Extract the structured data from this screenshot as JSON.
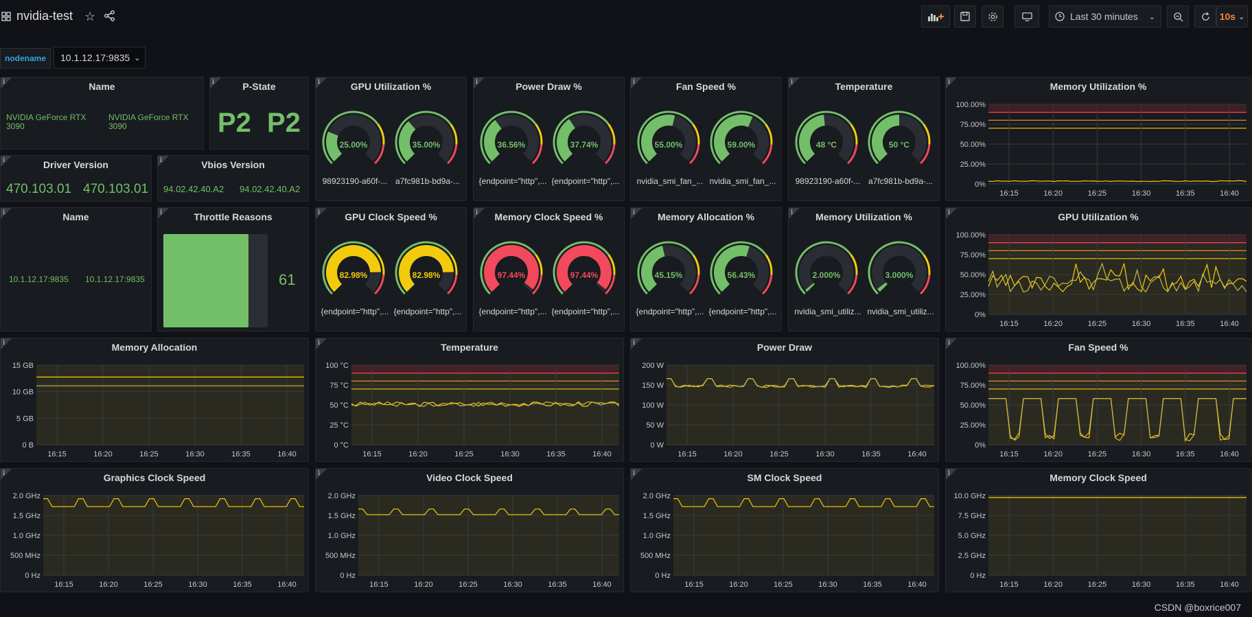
{
  "header": {
    "title": "nvidia-test",
    "time_range": "Last 30 minutes",
    "refresh_interval": "10s"
  },
  "variables": {
    "label": "nodename",
    "value": "10.1.12.17:9835"
  },
  "colors": {
    "green": "#73bf69",
    "yellow": "#f2cc0c",
    "orange": "#ff9830",
    "red": "#f2495c",
    "series": "#f2cc0c"
  },
  "row1": {
    "name": {
      "title": "Name",
      "values": [
        "NVIDIA GeForce RTX 3090",
        "NVIDIA GeForce RTX 3090"
      ]
    },
    "pstate": {
      "title": "P-State",
      "values": [
        "P2",
        "P2"
      ]
    },
    "driver": {
      "title": "Driver Version",
      "values": [
        "470.103.01",
        "470.103.01"
      ]
    },
    "vbios": {
      "title": "Vbios Version",
      "values": [
        "94.02.42.40.A2",
        "94.02.42.40.A2"
      ]
    }
  },
  "gauges": [
    {
      "title": "GPU Utilization %",
      "items": [
        {
          "value": "25.00%",
          "fraction": 0.25,
          "color": "#73bf69",
          "label": "98923190-a60f-..."
        },
        {
          "value": "35.00%",
          "fraction": 0.35,
          "color": "#73bf69",
          "label": "a7fc981b-bd9a-..."
        }
      ]
    },
    {
      "title": "Power Draw %",
      "items": [
        {
          "value": "36.56%",
          "fraction": 0.3656,
          "color": "#73bf69",
          "label": "{endpoint=\"http\",..."
        },
        {
          "value": "37.74%",
          "fraction": 0.3774,
          "color": "#73bf69",
          "label": "{endpoint=\"http\",..."
        }
      ]
    },
    {
      "title": "Fan Speed %",
      "items": [
        {
          "value": "55.00%",
          "fraction": 0.55,
          "color": "#73bf69",
          "label": "nvidia_smi_fan_..."
        },
        {
          "value": "59.00%",
          "fraction": 0.59,
          "color": "#73bf69",
          "label": "nvidia_smi_fan_..."
        }
      ]
    },
    {
      "title": "Temperature",
      "items": [
        {
          "value": "48 °C",
          "fraction": 0.48,
          "color": "#73bf69",
          "label": "98923190-a60f-..."
        },
        {
          "value": "50 °C",
          "fraction": 0.5,
          "color": "#73bf69",
          "label": "a7fc981b-bd9a-..."
        }
      ]
    },
    {
      "title": "GPU Clock Speed %",
      "items": [
        {
          "value": "82.98%",
          "fraction": 0.8298,
          "color": "#f2cc0c",
          "label": "{endpoint=\"http\",..."
        },
        {
          "value": "82.98%",
          "fraction": 0.8298,
          "color": "#f2cc0c",
          "label": "{endpoint=\"http\",..."
        }
      ]
    },
    {
      "title": "Memory Clock Speed %",
      "items": [
        {
          "value": "97.44%",
          "fraction": 0.9744,
          "color": "#f2495c",
          "label": "{endpoint=\"http\",..."
        },
        {
          "value": "97.44%",
          "fraction": 0.9744,
          "color": "#f2495c",
          "label": "{endpoint=\"http\",..."
        }
      ]
    },
    {
      "title": "Memory Allocation %",
      "items": [
        {
          "value": "45.15%",
          "fraction": 0.4515,
          "color": "#73bf69",
          "label": "{endpoint=\"http\",..."
        },
        {
          "value": "56.43%",
          "fraction": 0.5643,
          "color": "#73bf69",
          "label": "{endpoint=\"http\",..."
        }
      ]
    },
    {
      "title": "Memory Utilization %",
      "items": [
        {
          "value": "2.000%",
          "fraction": 0.02,
          "color": "#73bf69",
          "label": "nvidia_smi_utiliz..."
        },
        {
          "value": "3.000%",
          "fraction": 0.03,
          "color": "#73bf69",
          "label": "nvidia_smi_utiliz..."
        }
      ]
    }
  ],
  "row2": {
    "name": {
      "title": "Name",
      "values": [
        "10.1.12.17:9835",
        "10.1.12.17:9835"
      ]
    },
    "throttle": {
      "title": "Throttle Reasons",
      "value": "61"
    }
  },
  "timeseries": [
    {
      "title": "Memory Utilization %",
      "yticks": [
        "100.00%",
        "75.00%",
        "50.00%",
        "25.00%",
        "0%"
      ],
      "xticks": [
        "16:15",
        "16:20",
        "16:25",
        "16:30",
        "16:35",
        "16:40"
      ],
      "thresholds": true,
      "fill": false
    },
    {
      "title": "GPU Utilization %",
      "yticks": [
        "100.00%",
        "75.00%",
        "50.00%",
        "25.00%",
        "0%"
      ],
      "xticks": [
        "16:15",
        "16:20",
        "16:25",
        "16:30",
        "16:35",
        "16:40"
      ],
      "thresholds": true,
      "fill": true
    },
    {
      "title": "Memory Allocation",
      "yticks": [
        "15 GB",
        "10 GB",
        "5 GB",
        "0 B"
      ],
      "xticks": [
        "16:15",
        "16:20",
        "16:25",
        "16:30",
        "16:35",
        "16:40"
      ],
      "thresholds": false,
      "fill": true
    },
    {
      "title": "Temperature",
      "yticks": [
        "100 °C",
        "75 °C",
        "50 °C",
        "25 °C",
        "0 °C"
      ],
      "xticks": [
        "16:15",
        "16:20",
        "16:25",
        "16:30",
        "16:35",
        "16:40"
      ],
      "thresholds": true,
      "fill": true
    },
    {
      "title": "Power Draw",
      "yticks": [
        "200 W",
        "150 W",
        "100 W",
        "50 W",
        "0 W"
      ],
      "xticks": [
        "16:15",
        "16:20",
        "16:25",
        "16:30",
        "16:35",
        "16:40"
      ],
      "thresholds": false,
      "fill": true
    },
    {
      "title": "Fan Speed %",
      "yticks": [
        "100.00%",
        "75.00%",
        "50.00%",
        "25.00%",
        "0%"
      ],
      "xticks": [
        "16:15",
        "16:20",
        "16:25",
        "16:30",
        "16:35",
        "16:40"
      ],
      "thresholds": true,
      "fill": true
    },
    {
      "title": "Graphics Clock Speed",
      "yticks": [
        "2.0 GHz",
        "1.5 GHz",
        "1.0 GHz",
        "500 MHz",
        "0 Hz"
      ],
      "xticks": [
        "16:15",
        "16:20",
        "16:25",
        "16:30",
        "16:35",
        "16:40"
      ],
      "thresholds": false,
      "fill": true
    },
    {
      "title": "Video Clock Speed",
      "yticks": [
        "2.0 GHz",
        "1.5 GHz",
        "1.0 GHz",
        "500 MHz",
        "0 Hz"
      ],
      "xticks": [
        "16:15",
        "16:20",
        "16:25",
        "16:30",
        "16:35",
        "16:40"
      ],
      "thresholds": false,
      "fill": true
    },
    {
      "title": "SM Clock Speed",
      "yticks": [
        "2.0 GHz",
        "1.5 GHz",
        "1.0 GHz",
        "500 MHz",
        "0 Hz"
      ],
      "xticks": [
        "16:15",
        "16:20",
        "16:25",
        "16:30",
        "16:35",
        "16:40"
      ],
      "thresholds": false,
      "fill": true
    },
    {
      "title": "Memory Clock Speed",
      "yticks": [
        "10.0 GHz",
        "7.5 GHz",
        "5.0 GHz",
        "2.5 GHz",
        "0 Hz"
      ],
      "xticks": [
        "16:15",
        "16:20",
        "16:25",
        "16:30",
        "16:35",
        "16:40"
      ],
      "thresholds": false,
      "fill": true
    }
  ],
  "watermark": "CSDN @boxrice007"
}
